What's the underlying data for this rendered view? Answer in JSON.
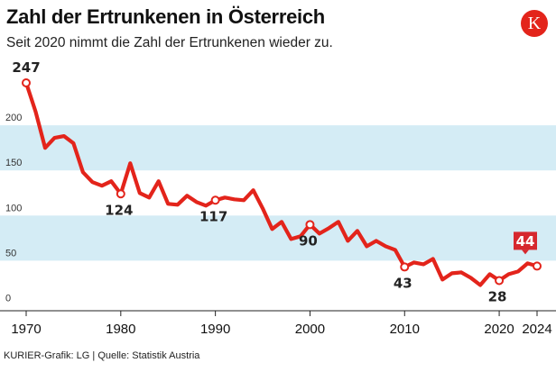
{
  "header": {
    "title": "Zahl der Ertrunkenen in Österreich",
    "subtitle": "Seit 2020 nimmt die Zahl der Ertrunkenen wieder zu.",
    "logo_letter": "K"
  },
  "footer": {
    "source": "KURIER-Grafik: LG | Quelle: Statistik Austria"
  },
  "colors": {
    "line": "#e3241b",
    "band": "#d4ecf5",
    "highlight": "#d6282e"
  },
  "chart_data": {
    "type": "line",
    "title": "Zahl der Ertrunkenen in Österreich",
    "xlabel": "",
    "ylabel": "",
    "xlim": [
      1970,
      2024
    ],
    "ylim": [
      0,
      250
    ],
    "x_ticks": [
      1970,
      1980,
      1990,
      2000,
      2010,
      2020,
      2024
    ],
    "y_ticks": [
      0,
      50,
      100,
      150,
      200
    ],
    "bands": [
      [
        50,
        100
      ],
      [
        150,
        200
      ]
    ],
    "series": [
      {
        "name": "Ertrunkene",
        "x": [
          1970,
          1971,
          1972,
          1973,
          1974,
          1975,
          1976,
          1977,
          1978,
          1979,
          1980,
          1981,
          1982,
          1983,
          1984,
          1985,
          1986,
          1987,
          1988,
          1989,
          1990,
          1991,
          1992,
          1993,
          1994,
          1995,
          1996,
          1997,
          1998,
          1999,
          2000,
          2001,
          2002,
          2003,
          2004,
          2005,
          2006,
          2007,
          2008,
          2009,
          2010,
          2011,
          2012,
          2013,
          2014,
          2015,
          2016,
          2017,
          2018,
          2019,
          2020,
          2021,
          2022,
          2023,
          2024
        ],
        "values": [
          247,
          215,
          175,
          186,
          188,
          180,
          148,
          137,
          133,
          138,
          124,
          158,
          125,
          120,
          138,
          113,
          112,
          122,
          115,
          111,
          117,
          120,
          118,
          117,
          128,
          108,
          85,
          93,
          74,
          77,
          90,
          80,
          86,
          93,
          72,
          83,
          66,
          72,
          66,
          62,
          43,
          48,
          46,
          52,
          29,
          36,
          37,
          31,
          23,
          35,
          28,
          35,
          38,
          47,
          44
        ]
      }
    ],
    "annotations": [
      {
        "year": 1970,
        "value": "247",
        "pos": "above"
      },
      {
        "year": 1980,
        "value": "124",
        "pos": "below"
      },
      {
        "year": 1990,
        "value": "117",
        "pos": "below"
      },
      {
        "year": 2000,
        "value": "90",
        "pos": "below"
      },
      {
        "year": 2010,
        "value": "43",
        "pos": "below"
      },
      {
        "year": 2020,
        "value": "28",
        "pos": "below"
      },
      {
        "year": 2024,
        "value": "44",
        "pos": "highlight"
      }
    ]
  }
}
